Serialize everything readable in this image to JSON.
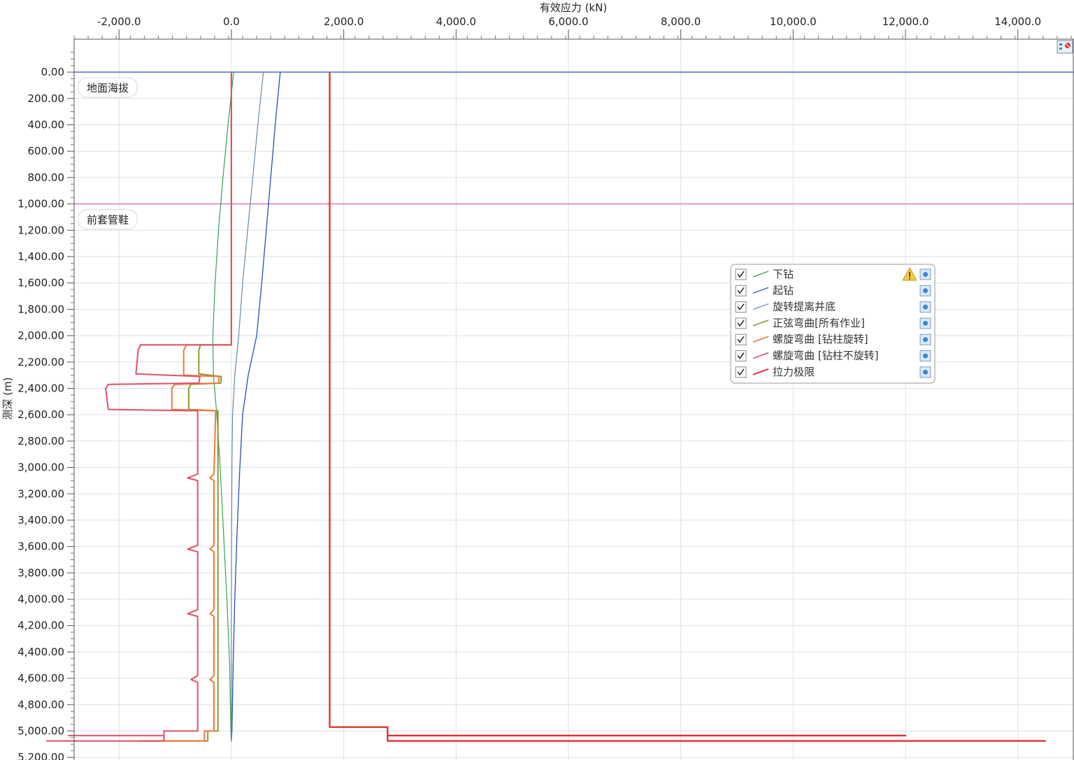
{
  "chart_data": {
    "type": "line",
    "xlabel": "有效应力 (kN)",
    "ylabel": "测深 (m)",
    "xlim": [
      -2800,
      15000
    ],
    "ylim": [
      -250,
      5220
    ],
    "x_ticks": [
      -2000,
      0,
      2000,
      4000,
      6000,
      8000,
      10000,
      12000,
      14000
    ],
    "x_tick_labels": [
      "-2,000.0",
      "0.0",
      "2,000.0",
      "4,000.0",
      "6,000.0",
      "8,000.0",
      "10,000.0",
      "12,000.0",
      "14,000.0"
    ],
    "y_ticks": [
      0,
      200,
      400,
      600,
      800,
      1000,
      1200,
      1400,
      1600,
      1800,
      2000,
      2200,
      2400,
      2600,
      2800,
      3000,
      3200,
      3400,
      3600,
      3800,
      4000,
      4200,
      4400,
      4600,
      4800,
      5000,
      5200
    ],
    "y_tick_labels": [
      "0.00",
      "200.00",
      "400.00",
      "600.00",
      "800.00",
      "1,000.00",
      "1,200.00",
      "1,400.00",
      "1,600.00",
      "1,800.00",
      "2,000.00",
      "2,200.00",
      "2,400.00",
      "2,600.00",
      "2,800.00",
      "3,000.00",
      "3,200.00",
      "3,400.00",
      "3,600.00",
      "3,800.00",
      "4,000.00",
      "4,200.00",
      "4,400.00",
      "4,600.00",
      "4,800.00",
      "5,000.00",
      "5,200.00"
    ],
    "grid": true,
    "legend_position": "right-middle",
    "markers": [
      {
        "label": "地面海拔",
        "depth": 0,
        "color": "#4a6fc4"
      },
      {
        "label": "前套管鞋",
        "depth": 1000,
        "color": "#e080c8"
      }
    ],
    "series": [
      {
        "name": "下钻",
        "color": "#3aa05a",
        "width": 1.2,
        "points": [
          [
            40,
            0
          ],
          [
            -60,
            400
          ],
          [
            -150,
            800
          ],
          [
            -230,
            1200
          ],
          [
            -290,
            1600
          ],
          [
            -330,
            2000
          ],
          [
            -320,
            2300
          ],
          [
            -260,
            2600
          ],
          [
            -200,
            3000
          ],
          [
            -140,
            3500
          ],
          [
            -80,
            4000
          ],
          [
            -30,
            4500
          ],
          [
            -10,
            5000
          ],
          [
            0,
            5080
          ]
        ]
      },
      {
        "name": "起钻",
        "color": "#2850b0",
        "width": 1.3,
        "points": [
          [
            870,
            0
          ],
          [
            780,
            400
          ],
          [
            700,
            800
          ],
          [
            620,
            1200
          ],
          [
            540,
            1600
          ],
          [
            450,
            2000
          ],
          [
            300,
            2300
          ],
          [
            200,
            2600
          ],
          [
            150,
            3000
          ],
          [
            100,
            3500
          ],
          [
            60,
            4000
          ],
          [
            30,
            4500
          ],
          [
            10,
            5000
          ],
          [
            0,
            5080
          ]
        ]
      },
      {
        "name": "旋转提离井底",
        "color": "#6a88a8",
        "width": 1.2,
        "points": [
          [
            570,
            0
          ],
          [
            470,
            400
          ],
          [
            380,
            800
          ],
          [
            290,
            1200
          ],
          [
            200,
            1600
          ],
          [
            130,
            2000
          ],
          [
            60,
            2300
          ],
          [
            20,
            2600
          ],
          [
            10,
            3000
          ],
          [
            0,
            4000
          ],
          [
            0,
            5080
          ]
        ]
      },
      {
        "name": "正弦弯曲[所有作业]",
        "color": "#8a9a30",
        "width": 2.0,
        "points": [
          [
            0,
            0
          ],
          [
            0,
            2070
          ],
          [
            -550,
            2070
          ],
          [
            -580,
            2110
          ],
          [
            -580,
            2290
          ],
          [
            -180,
            2310
          ],
          [
            -190,
            2360
          ],
          [
            -720,
            2370
          ],
          [
            -760,
            2400
          ],
          [
            -760,
            2560
          ],
          [
            -240,
            2570
          ],
          [
            -240,
            3200
          ],
          [
            -240,
            4500
          ],
          [
            -240,
            5000
          ],
          [
            -420,
            5000
          ],
          [
            -420,
            5075
          ],
          [
            -1650,
            5075
          ]
        ]
      },
      {
        "name": "螺旋弯曲 [钻柱旋转]",
        "color": "#f07838",
        "width": 2.0,
        "points": [
          [
            0,
            0
          ],
          [
            0,
            2070
          ],
          [
            -800,
            2070
          ],
          [
            -850,
            2110
          ],
          [
            -850,
            2300
          ],
          [
            -220,
            2310
          ],
          [
            -230,
            2360
          ],
          [
            -1010,
            2370
          ],
          [
            -1060,
            2400
          ],
          [
            -1060,
            2560
          ],
          [
            -280,
            2570
          ],
          [
            -310,
            3050
          ],
          [
            -380,
            3080
          ],
          [
            -310,
            3100
          ],
          [
            -310,
            3590
          ],
          [
            -380,
            3620
          ],
          [
            -310,
            3640
          ],
          [
            -310,
            4080
          ],
          [
            -380,
            4110
          ],
          [
            -310,
            4130
          ],
          [
            -310,
            4580
          ],
          [
            -380,
            4610
          ],
          [
            -310,
            4630
          ],
          [
            -310,
            5000
          ],
          [
            -480,
            5000
          ],
          [
            -480,
            5075
          ],
          [
            -1680,
            5075
          ]
        ]
      },
      {
        "name": "螺旋弯曲 [钻柱不旋转]",
        "color": "#e05068",
        "width": 2.0,
        "points": [
          [
            0,
            0
          ],
          [
            0,
            2070
          ],
          [
            -1620,
            2070
          ],
          [
            -1660,
            2110
          ],
          [
            -1700,
            2290
          ],
          [
            -560,
            2310
          ],
          [
            -580,
            2360
          ],
          [
            -2190,
            2370
          ],
          [
            -2240,
            2400
          ],
          [
            -2190,
            2560
          ],
          [
            -600,
            2570
          ],
          [
            -600,
            3050
          ],
          [
            -780,
            3080
          ],
          [
            -600,
            3100
          ],
          [
            -600,
            3590
          ],
          [
            -780,
            3620
          ],
          [
            -600,
            3640
          ],
          [
            -600,
            4080
          ],
          [
            -780,
            4110
          ],
          [
            -600,
            4130
          ],
          [
            -600,
            4580
          ],
          [
            -720,
            4610
          ],
          [
            -600,
            4630
          ],
          [
            -600,
            5000
          ],
          [
            -1200,
            5000
          ],
          [
            -1200,
            5035
          ],
          [
            -2900,
            5035
          ],
          [
            -1200,
            5035
          ],
          [
            -1200,
            5075
          ],
          [
            -3300,
            5075
          ]
        ]
      },
      {
        "name": "拉力极限",
        "color": "#e03030",
        "width": 2.4,
        "points": [
          [
            1750,
            0
          ],
          [
            1750,
            4970
          ],
          [
            2780,
            4970
          ],
          [
            2780,
            5035
          ],
          [
            12000,
            5035
          ],
          [
            2780,
            5035
          ],
          [
            2780,
            5075
          ],
          [
            14500,
            5075
          ]
        ]
      }
    ]
  }
}
